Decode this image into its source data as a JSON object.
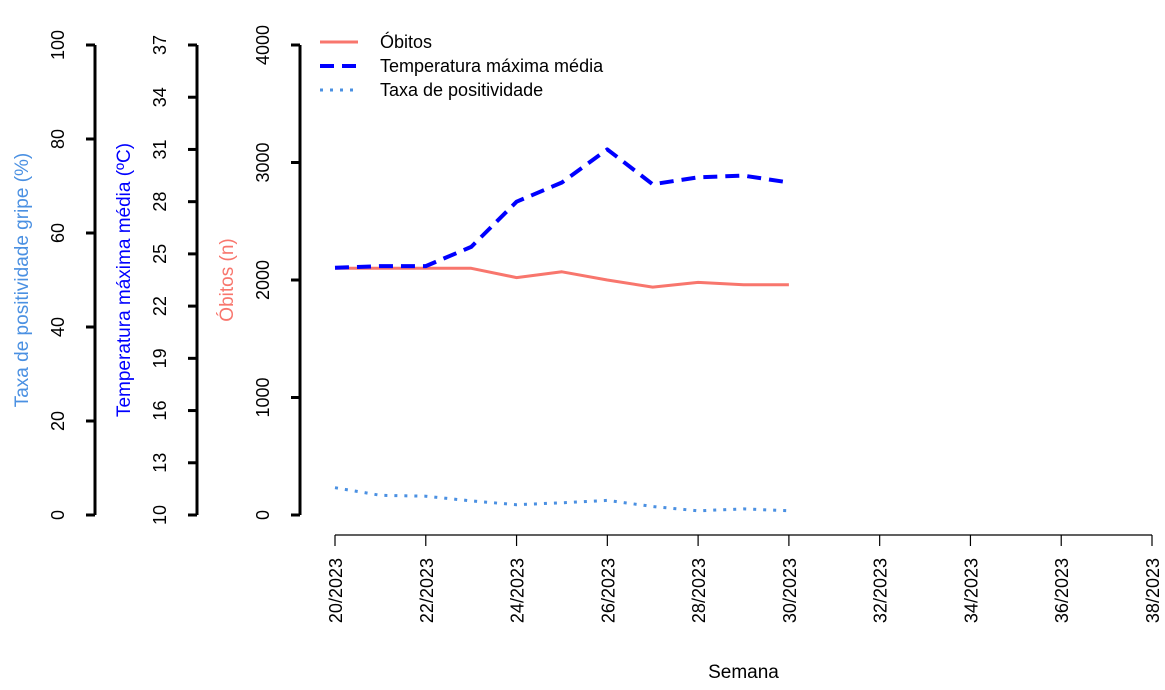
{
  "chart_data": {
    "type": "line",
    "xlabel": "Semana",
    "x_ticks": [
      "20/2023",
      "22/2023",
      "24/2023",
      "26/2023",
      "28/2023",
      "30/2023",
      "32/2023",
      "34/2023",
      "36/2023",
      "38/2023"
    ],
    "x_range": [
      20,
      38
    ],
    "axes": {
      "obitos": {
        "label": "Óbitos (n)",
        "range": [
          0,
          4000
        ],
        "ticks": [
          "0",
          "1000",
          "2000",
          "3000",
          "4000"
        ],
        "color": "#F8766D"
      },
      "temperatura": {
        "label": "Temperatura máxima média (ºC)",
        "range": [
          10,
          37
        ],
        "ticks": [
          "10",
          "13",
          "16",
          "19",
          "22",
          "25",
          "28",
          "31",
          "34",
          "37"
        ],
        "color": "#0000FF"
      },
      "positividade": {
        "label": "Taxa de positividade gripe (%)",
        "range": [
          0,
          100
        ],
        "ticks": [
          "0",
          "20",
          "40",
          "60",
          "80",
          "100"
        ],
        "color": "#4A90E2"
      }
    },
    "series": [
      {
        "name": "Óbitos",
        "axis": "obitos",
        "style": "solid",
        "color": "#F8766D",
        "x": [
          20,
          21,
          22,
          23,
          24,
          25,
          26,
          27,
          28,
          29,
          30
        ],
        "values": [
          2100,
          2100,
          2100,
          2100,
          2020,
          2070,
          2000,
          1940,
          1980,
          1960,
          1960
        ]
      },
      {
        "name": "Temperatura máxima média",
        "axis": "temperatura",
        "style": "dashed",
        "color": "#0000FF",
        "x": [
          20,
          21,
          22,
          23,
          24,
          25,
          26,
          27,
          28,
          29,
          30
        ],
        "values": [
          24.2,
          24.3,
          24.3,
          25.4,
          28.0,
          29.1,
          31.0,
          29.0,
          29.4,
          29.5,
          29.1
        ]
      },
      {
        "name": "Taxa de positividade",
        "axis": "positividade",
        "style": "dotted",
        "color": "#4A90E2",
        "x": [
          20,
          21,
          22,
          23,
          24,
          25,
          26,
          27,
          28,
          29,
          30
        ],
        "values": [
          5.8,
          4.2,
          4.0,
          3.0,
          2.2,
          2.6,
          3.1,
          1.8,
          0.9,
          1.3,
          0.9
        ]
      }
    ],
    "legend_placement": "top-left",
    "grid": false
  }
}
